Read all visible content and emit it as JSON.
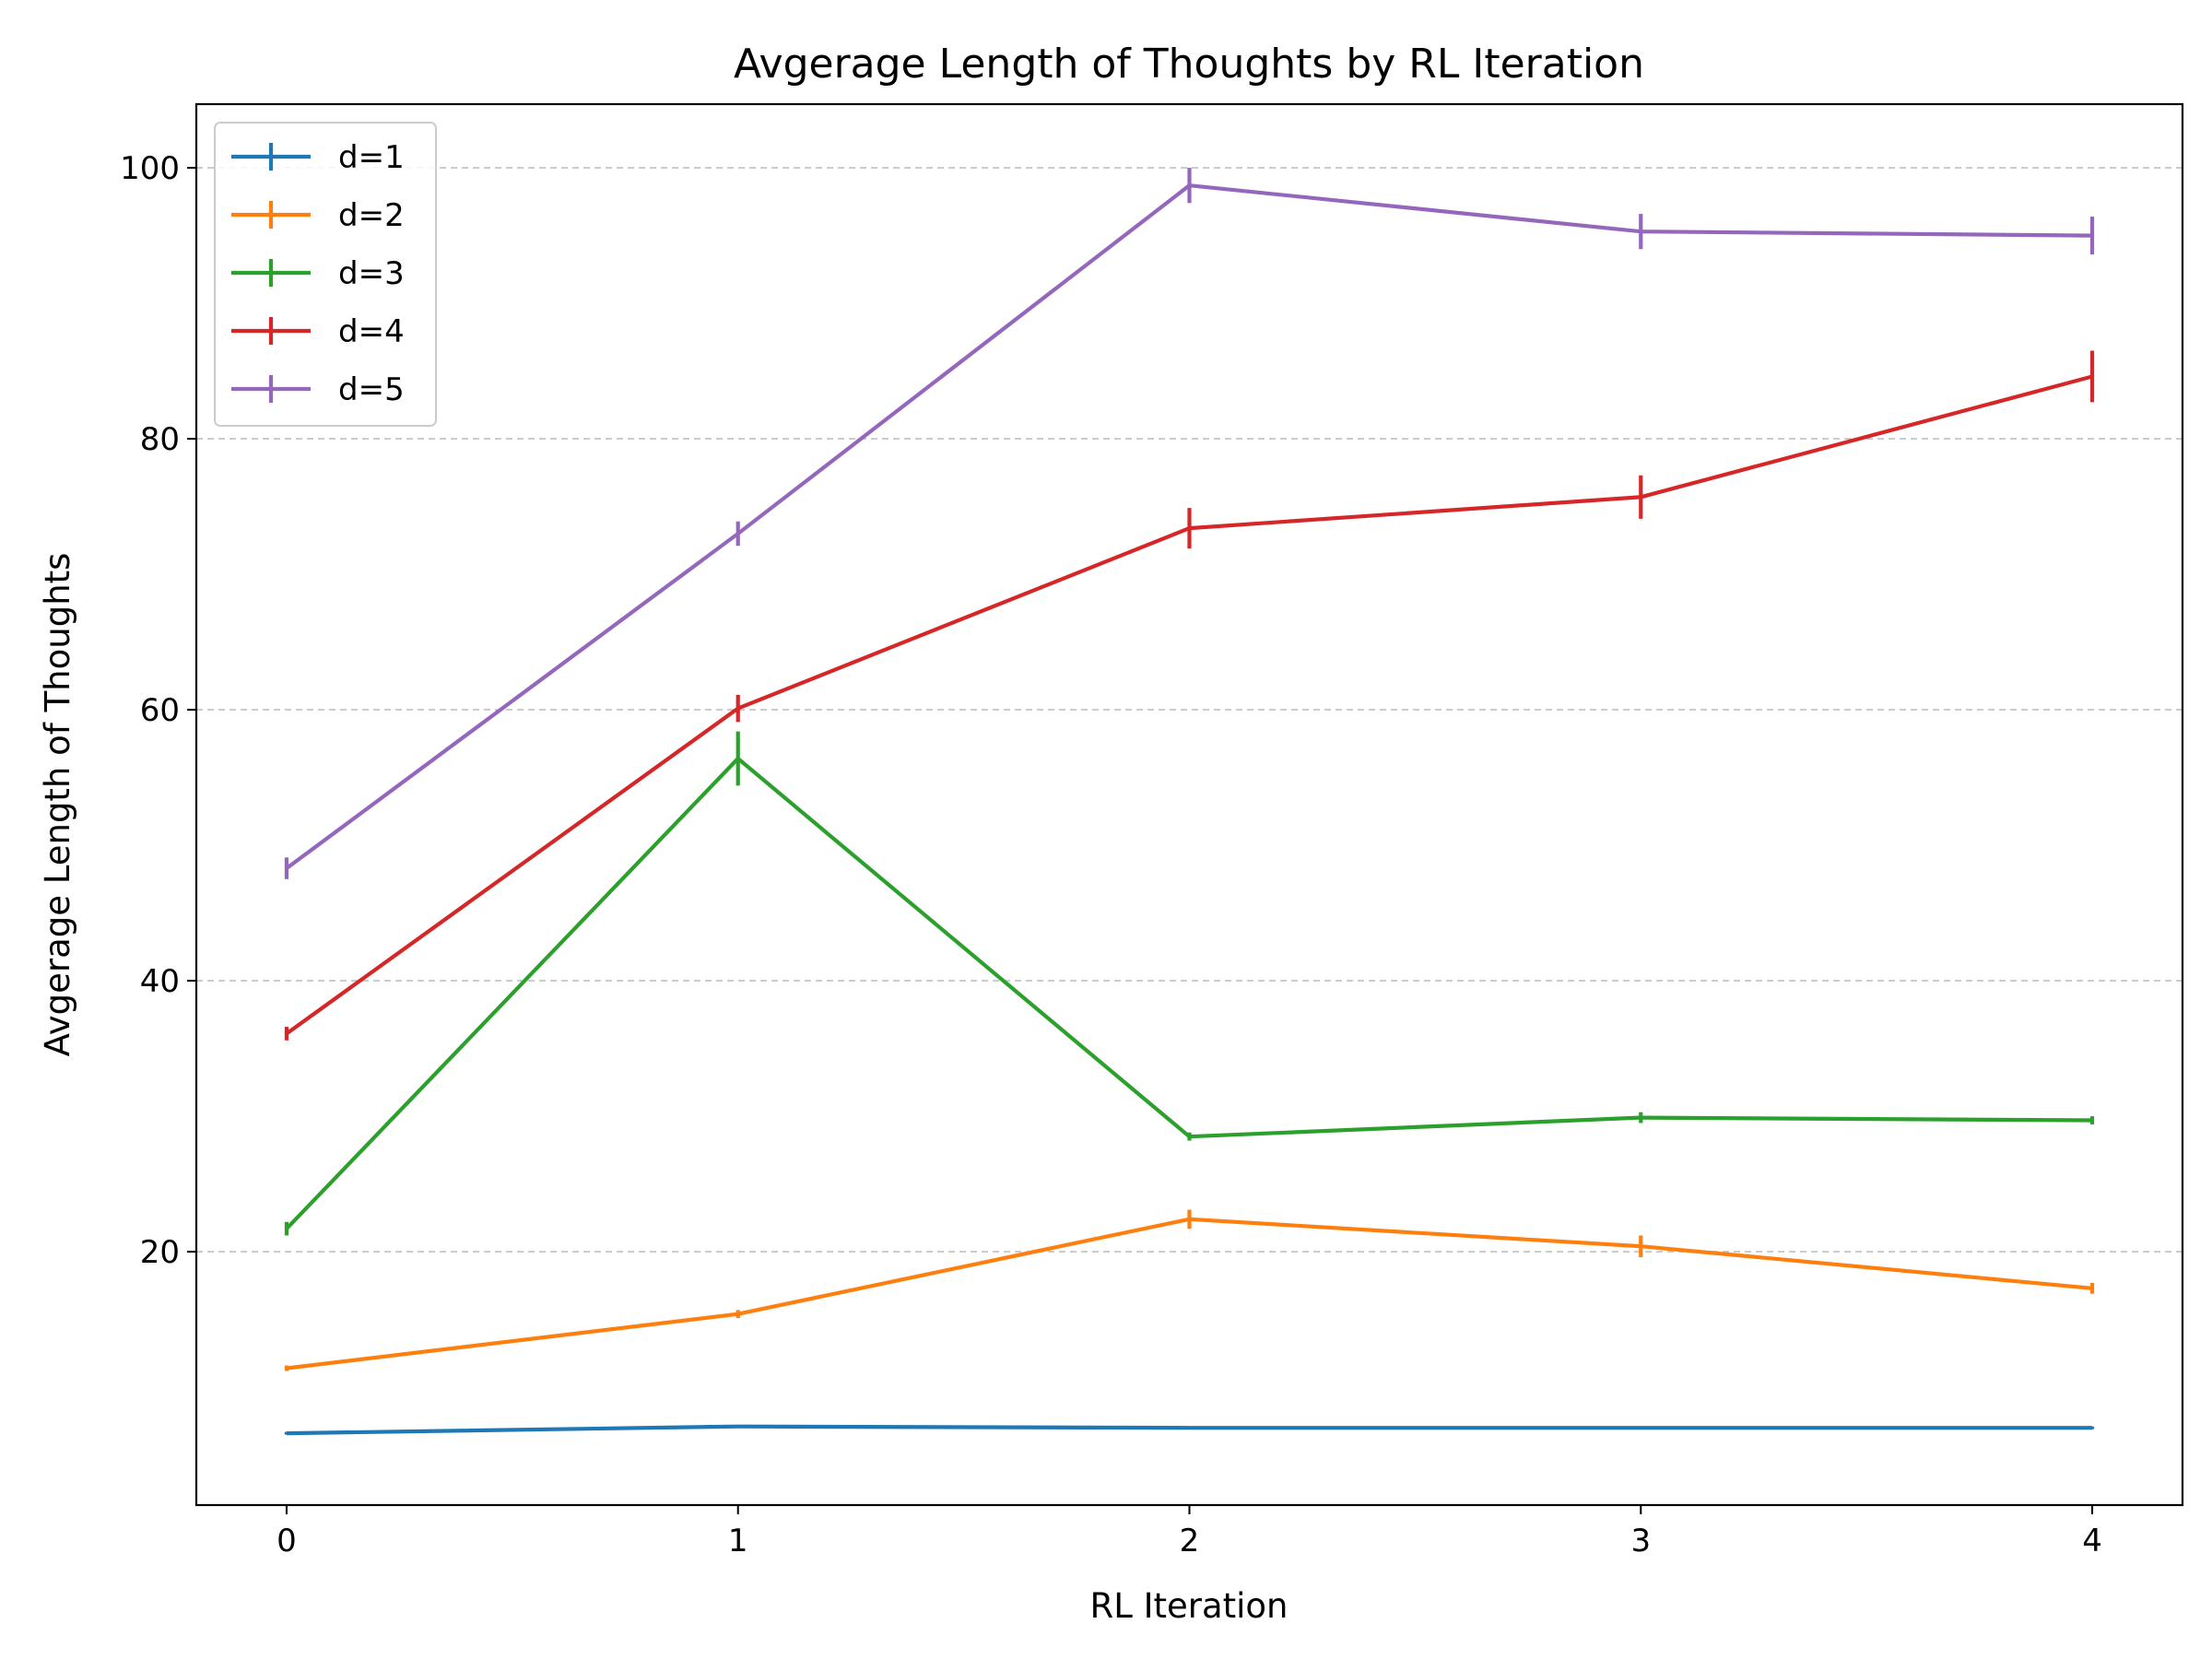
{
  "chart_data": {
    "type": "line",
    "title": "Avgerage Length of Thoughts by RL Iteration",
    "xlabel": "RL Iteration",
    "ylabel": "Avgerage Length of Thoughts",
    "x": [
      0,
      1,
      2,
      3,
      4
    ],
    "x_ticks": [
      "0",
      "1",
      "2",
      "3",
      "4"
    ],
    "y_ticks": [
      "20",
      "40",
      "60",
      "80",
      "100"
    ],
    "xlim": [
      -0.2,
      4.2
    ],
    "ylim": [
      1.3,
      104.7
    ],
    "grid": "horizontal dashed",
    "legend_position": "top-left",
    "series": [
      {
        "name": "d=1",
        "color": "#1f77b4",
        "values": [
          6.6,
          7.1,
          7.0,
          7.0,
          7.0
        ],
        "errors": [
          0.1,
          0.1,
          0.1,
          0.1,
          0.1
        ]
      },
      {
        "name": "d=2",
        "color": "#ff7f0e",
        "values": [
          11.4,
          15.4,
          22.4,
          20.4,
          17.3
        ],
        "errors": [
          0.2,
          0.3,
          0.7,
          0.8,
          0.4
        ]
      },
      {
        "name": "d=3",
        "color": "#2ca02c",
        "values": [
          21.7,
          56.4,
          28.5,
          29.9,
          29.7
        ],
        "errors": [
          0.5,
          2.0,
          0.3,
          0.4,
          0.3
        ]
      },
      {
        "name": "d=4",
        "color": "#d62728",
        "values": [
          36.1,
          60.1,
          73.4,
          75.7,
          84.6
        ],
        "errors": [
          0.5,
          1.0,
          1.5,
          1.6,
          1.9
        ]
      },
      {
        "name": "d=5",
        "color": "#9467bd",
        "values": [
          48.3,
          73.0,
          98.7,
          95.3,
          95.0
        ],
        "errors": [
          0.8,
          0.9,
          1.3,
          1.3,
          1.4
        ]
      }
    ]
  }
}
